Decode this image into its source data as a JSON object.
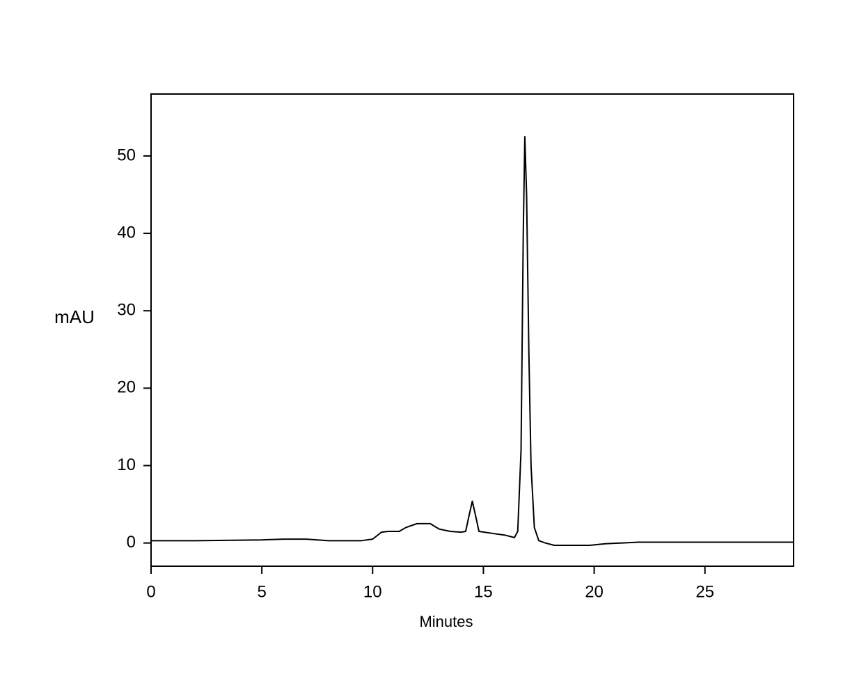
{
  "chart_data": {
    "type": "line",
    "xlabel": "Minutes",
    "ylabel": "mAU",
    "x": [
      0,
      2,
      5,
      6,
      7,
      8,
      9.5,
      10,
      10.4,
      10.7,
      11.2,
      11.5,
      12.0,
      12.6,
      13.0,
      13.5,
      14.0,
      14.2,
      14.35,
      14.5,
      14.65,
      14.8,
      15.5,
      16.0,
      16.4,
      16.55,
      16.7,
      16.8,
      16.87,
      16.95,
      17.05,
      17.15,
      17.3,
      17.5,
      17.8,
      18.2,
      19,
      19.8,
      20.5,
      22,
      25,
      29
    ],
    "series": [
      {
        "color": "#000000",
        "values": [
          0.3,
          0.3,
          0.4,
          0.5,
          0.5,
          0.3,
          0.3,
          0.5,
          1.4,
          1.5,
          1.5,
          2.0,
          2.5,
          2.5,
          1.8,
          1.5,
          1.4,
          1.5,
          3.5,
          5.4,
          3.5,
          1.5,
          1.2,
          1.0,
          0.7,
          1.5,
          12,
          40,
          52.5,
          45,
          25,
          10,
          2,
          0.3,
          0,
          -0.3,
          -0.3,
          -0.3,
          -0.1,
          0.1,
          0.1,
          0.1
        ]
      }
    ],
    "xlim": [
      0,
      29
    ],
    "xticks": [
      0,
      5,
      10,
      15,
      20,
      25
    ],
    "ylim": [
      -3,
      58
    ],
    "yticks": [
      0,
      10,
      20,
      30,
      40,
      50
    ]
  }
}
